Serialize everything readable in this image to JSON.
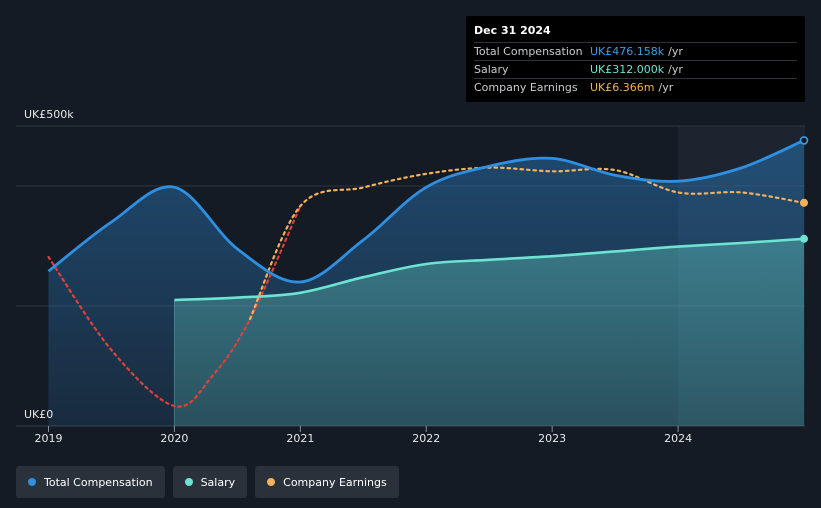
{
  "tooltip": {
    "date": "Dec 31 2024",
    "rows": [
      {
        "label": "Total Compensation",
        "value": "UK£476.158k",
        "unit": "/yr",
        "color": "#3b9ce6"
      },
      {
        "label": "Salary",
        "value": "UK£312.000k",
        "unit": "/yr",
        "color": "#6de3d2"
      },
      {
        "label": "Company Earnings",
        "value": "UK£6.366m",
        "unit": "/yr",
        "color": "#f2b25c"
      }
    ]
  },
  "legend": [
    {
      "label": "Total Compensation",
      "color": "#2f8fe0"
    },
    {
      "label": "Salary",
      "color": "#6de3d2"
    },
    {
      "label": "Company Earnings",
      "color": "#f2b25c"
    }
  ],
  "chart_data": {
    "type": "line",
    "title": "",
    "xlabel": "",
    "ylabel": "",
    "y_axis_labels": {
      "top": "UK£500k",
      "bottom": "UK£0"
    },
    "ylim": [
      0,
      500
    ],
    "xlim": [
      2019,
      2025
    ],
    "x_ticks": [
      "2019",
      "2020",
      "2021",
      "2022",
      "2023",
      "2024"
    ],
    "x_tick_values": [
      2019,
      2020,
      2021,
      2022,
      2023,
      2024
    ],
    "highlight_from": 2024,
    "series": [
      {
        "name": "Total Compensation",
        "color": "#2f8fe0",
        "unit": "UK£k",
        "x": [
          2019,
          2019.5,
          2020,
          2020.5,
          2021,
          2021.5,
          2022,
          2022.5,
          2023,
          2023.5,
          2024,
          2024.5,
          2025
        ],
        "values": [
          258,
          340,
          398,
          295,
          240,
          310,
          398,
          433,
          446,
          418,
          408,
          430,
          476
        ]
      },
      {
        "name": "Salary",
        "color": "#6de3d2",
        "unit": "UK£k",
        "x": [
          2020,
          2020.5,
          2021,
          2021.5,
          2022,
          2022.5,
          2023,
          2023.5,
          2024,
          2024.5,
          2025
        ],
        "values": [
          210,
          214,
          222,
          248,
          270,
          277,
          283,
          291,
          299,
          305,
          312
        ]
      },
      {
        "name": "Company Earnings",
        "color": "#f2b25c",
        "negative_color": "#e0403a",
        "unit": "UK£m",
        "x": [
          2019,
          2019.5,
          2020,
          2020.3,
          2020.6,
          2021,
          2021.5,
          2022,
          2022.5,
          2023,
          2023.5,
          2024,
          2024.5,
          2025
        ],
        "values": [
          2.0,
          -5.5,
          -10.0,
          -7.6,
          -3.0,
          6.1,
          7.6,
          8.7,
          9.2,
          8.9,
          9.0,
          7.2,
          7.2,
          6.366
        ]
      }
    ],
    "earnings_axis": {
      "min": -10,
      "max": 11.1
    }
  }
}
